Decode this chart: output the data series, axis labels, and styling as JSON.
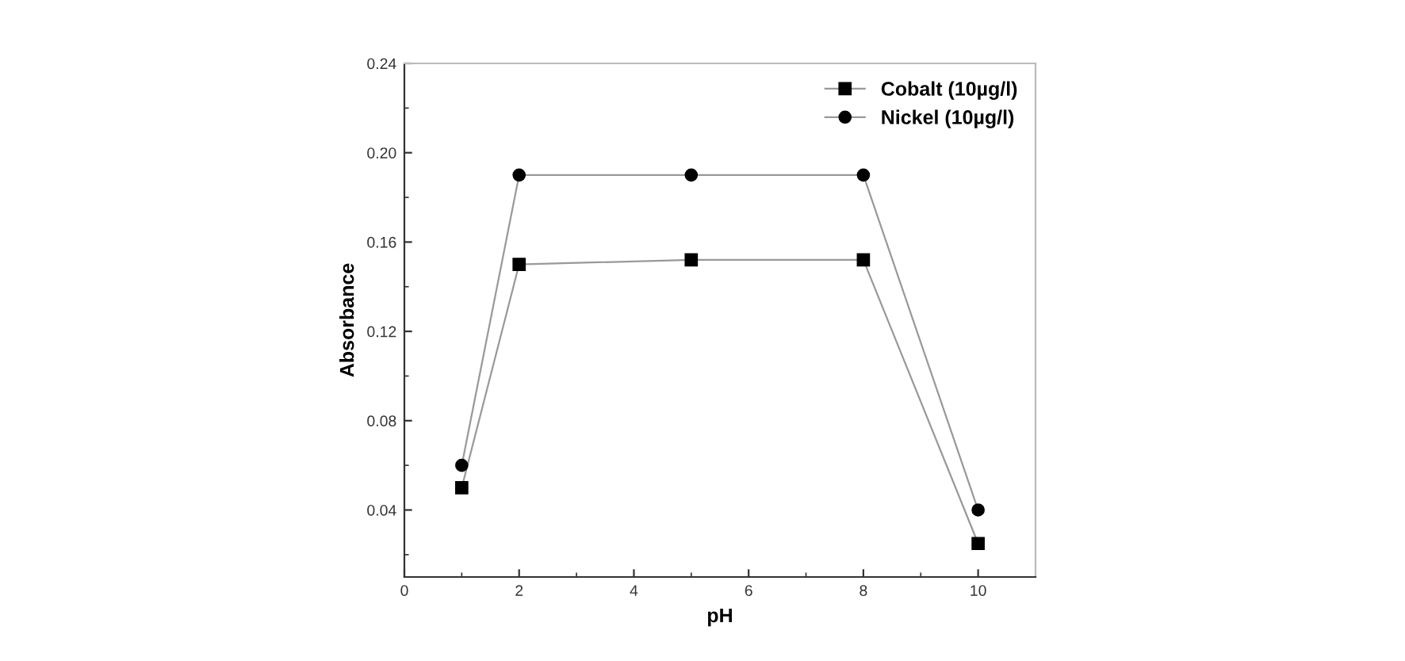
{
  "chart_data": {
    "type": "line",
    "xlabel": "pH",
    "ylabel": "Absorbance",
    "x": [
      1,
      2,
      5,
      8,
      10
    ],
    "series": [
      {
        "name": "Cobalt (10µg/l)",
        "color": "#000000",
        "marker": "square",
        "values": [
          0.05,
          0.15,
          0.152,
          0.152,
          0.025
        ]
      },
      {
        "name": "Nickel (10µg/l)",
        "color": "#000000",
        "marker": "circle",
        "values": [
          0.06,
          0.19,
          0.19,
          0.19,
          0.04
        ]
      }
    ],
    "xlim": [
      0,
      11
    ],
    "xticks": [
      0,
      2,
      4,
      6,
      8,
      10
    ],
    "ylim": [
      0.01,
      0.24
    ],
    "yticks": [
      {
        "value": 0.04,
        "label": "0.04"
      },
      {
        "value": 0.08,
        "label": "0.08"
      },
      {
        "value": 0.12,
        "label": "0.12"
      },
      {
        "value": 0.16,
        "label": "0.16"
      },
      {
        "value": 0.2,
        "label": "0.20"
      },
      {
        "value": 0.24,
        "label": "0.24"
      }
    ],
    "grid": false,
    "legend": "top right",
    "line_style": "solid"
  }
}
